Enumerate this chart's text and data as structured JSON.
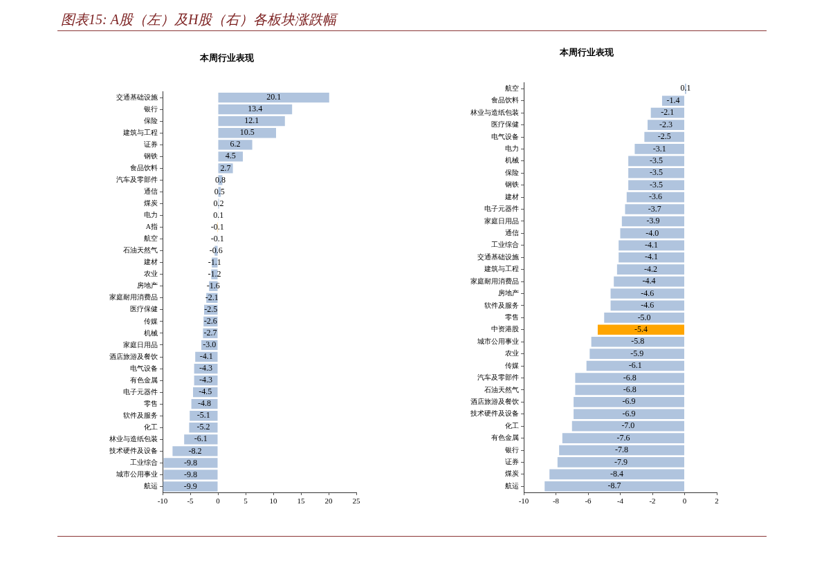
{
  "chart_data": [
    {
      "type": "bar",
      "orientation": "horizontal",
      "title": "本周行业表现",
      "annotations": [
        "图表15: A股（左）及H股（右）各板块涨跌幅"
      ],
      "categories": [
        "交通基础设施",
        "银行",
        "保险",
        "建筑与工程",
        "证券",
        "钢铁",
        "食品饮料",
        "汽车及零部件",
        "通信",
        "煤炭",
        "电力",
        "A指",
        "航空",
        "石油天然气",
        "建材",
        "农业",
        "房地产",
        "家庭耐用消费品",
        "医疗保健",
        "传媒",
        "机械",
        "家庭日用品",
        "酒店旅游及餐饮",
        "电气设备",
        "有色金属",
        "电子元器件",
        "零售",
        "软件及服务",
        "化工",
        "林业与造纸包装",
        "技术硬件及设备",
        "工业综合",
        "城市公用事业",
        "航运"
      ],
      "values": [
        20.1,
        13.4,
        12.1,
        10.5,
        6.2,
        4.5,
        2.7,
        0.8,
        0.5,
        0.2,
        0.1,
        -0.1,
        -0.1,
        -0.6,
        -1.1,
        -1.2,
        -1.6,
        -2.1,
        -2.5,
        -2.6,
        -2.7,
        -3.0,
        -4.1,
        -4.3,
        -4.3,
        -4.5,
        -4.8,
        -5.1,
        -5.2,
        -6.1,
        -8.2,
        -9.8,
        -9.8,
        -9.9
      ],
      "value_labels": [
        "20.1",
        "13.4",
        "12.1",
        "10.5",
        "6.2",
        "4.5",
        "2.7",
        "0.8",
        "0.5",
        "0.2",
        "0.1",
        "-0.1",
        "-0.1",
        "-0.6",
        "-1.1",
        "-1.2",
        "-1.6",
        "-2.1",
        "-2.5",
        "-2.6",
        "-2.7",
        "-3.0",
        "-4.1",
        "-4.3",
        "-4.3",
        "-4.5",
        "-4.8",
        "-5.1",
        "-5.2",
        "-6.1",
        "-8.2",
        "-9.8",
        "-9.8",
        "-9.9"
      ],
      "colors": [
        "#b0c4de",
        "#b0c4de",
        "#b0c4de",
        "#b0c4de",
        "#b0c4de",
        "#b0c4de",
        "#b0c4de",
        "#b0c4de",
        "#b0c4de",
        "#b0c4de",
        "#b0c4de",
        "#ffa500",
        "#b0c4de",
        "#b0c4de",
        "#b0c4de",
        "#b0c4de",
        "#b0c4de",
        "#b0c4de",
        "#b0c4de",
        "#b0c4de",
        "#b0c4de",
        "#b0c4de",
        "#b0c4de",
        "#b0c4de",
        "#b0c4de",
        "#b0c4de",
        "#b0c4de",
        "#b0c4de",
        "#b0c4de",
        "#b0c4de",
        "#b0c4de",
        "#b0c4de",
        "#b0c4de",
        "#b0c4de"
      ],
      "xlim": [
        -10,
        25
      ],
      "xticks": [
        -10,
        -5,
        0,
        5,
        10,
        15,
        20,
        25
      ]
    },
    {
      "type": "bar",
      "orientation": "horizontal",
      "title": "本周行业表现",
      "categories": [
        "航空",
        "食品饮料",
        "林业与造纸包装",
        "医疗保健",
        "电气设备",
        "电力",
        "机械",
        "保险",
        "钢铁",
        "建材",
        "电子元器件",
        "家庭日用品",
        "通信",
        "工业综合",
        "交通基础设施",
        "建筑与工程",
        "家庭耐用消费品",
        "房地产",
        "软件及服务",
        "零售",
        "中资港股",
        "城市公用事业",
        "农业",
        "传媒",
        "汽车及零部件",
        "石油天然气",
        "酒店旅游及餐饮",
        "技术硬件及设备",
        "化工",
        "有色金属",
        "银行",
        "证券",
        "煤炭",
        "航运"
      ],
      "values": [
        0.1,
        -1.4,
        -2.1,
        -2.3,
        -2.5,
        -3.1,
        -3.5,
        -3.5,
        -3.5,
        -3.6,
        -3.7,
        -3.9,
        -4.0,
        -4.1,
        -4.1,
        -4.2,
        -4.4,
        -4.6,
        -4.6,
        -5.0,
        -5.4,
        -5.8,
        -5.9,
        -6.1,
        -6.8,
        -6.8,
        -6.9,
        -6.9,
        -7.0,
        -7.6,
        -7.8,
        -7.9,
        -8.4,
        -8.7
      ],
      "value_labels": [
        "0.1",
        "-1.4",
        "-2.1",
        "-2.3",
        "-2.5",
        "-3.1",
        "-3.5",
        "-3.5",
        "-3.5",
        "-3.6",
        "-3.7",
        "-3.9",
        "-4.0",
        "-4.1",
        "-4.1",
        "-4.2",
        "-4.4",
        "-4.6",
        "-4.6",
        "-5.0",
        "-5.4",
        "-5.8",
        "-5.9",
        "-6.1",
        "-6.8",
        "-6.8",
        "-6.9",
        "-6.9",
        "-7.0",
        "-7.6",
        "-7.8",
        "-7.9",
        "-8.4",
        "-8.7"
      ],
      "colors": [
        "#b0c4de",
        "#b0c4de",
        "#b0c4de",
        "#b0c4de",
        "#b0c4de",
        "#b0c4de",
        "#b0c4de",
        "#b0c4de",
        "#b0c4de",
        "#b0c4de",
        "#b0c4de",
        "#b0c4de",
        "#b0c4de",
        "#b0c4de",
        "#b0c4de",
        "#b0c4de",
        "#b0c4de",
        "#b0c4de",
        "#b0c4de",
        "#b0c4de",
        "#ffa500",
        "#b0c4de",
        "#b0c4de",
        "#b0c4de",
        "#b0c4de",
        "#b0c4de",
        "#b0c4de",
        "#b0c4de",
        "#b0c4de",
        "#b0c4de",
        "#b0c4de",
        "#b0c4de",
        "#b0c4de",
        "#b0c4de"
      ],
      "xlim": [
        -10,
        2
      ],
      "xticks": [
        -10,
        -8,
        -6,
        -4,
        -2,
        0,
        2
      ]
    }
  ]
}
